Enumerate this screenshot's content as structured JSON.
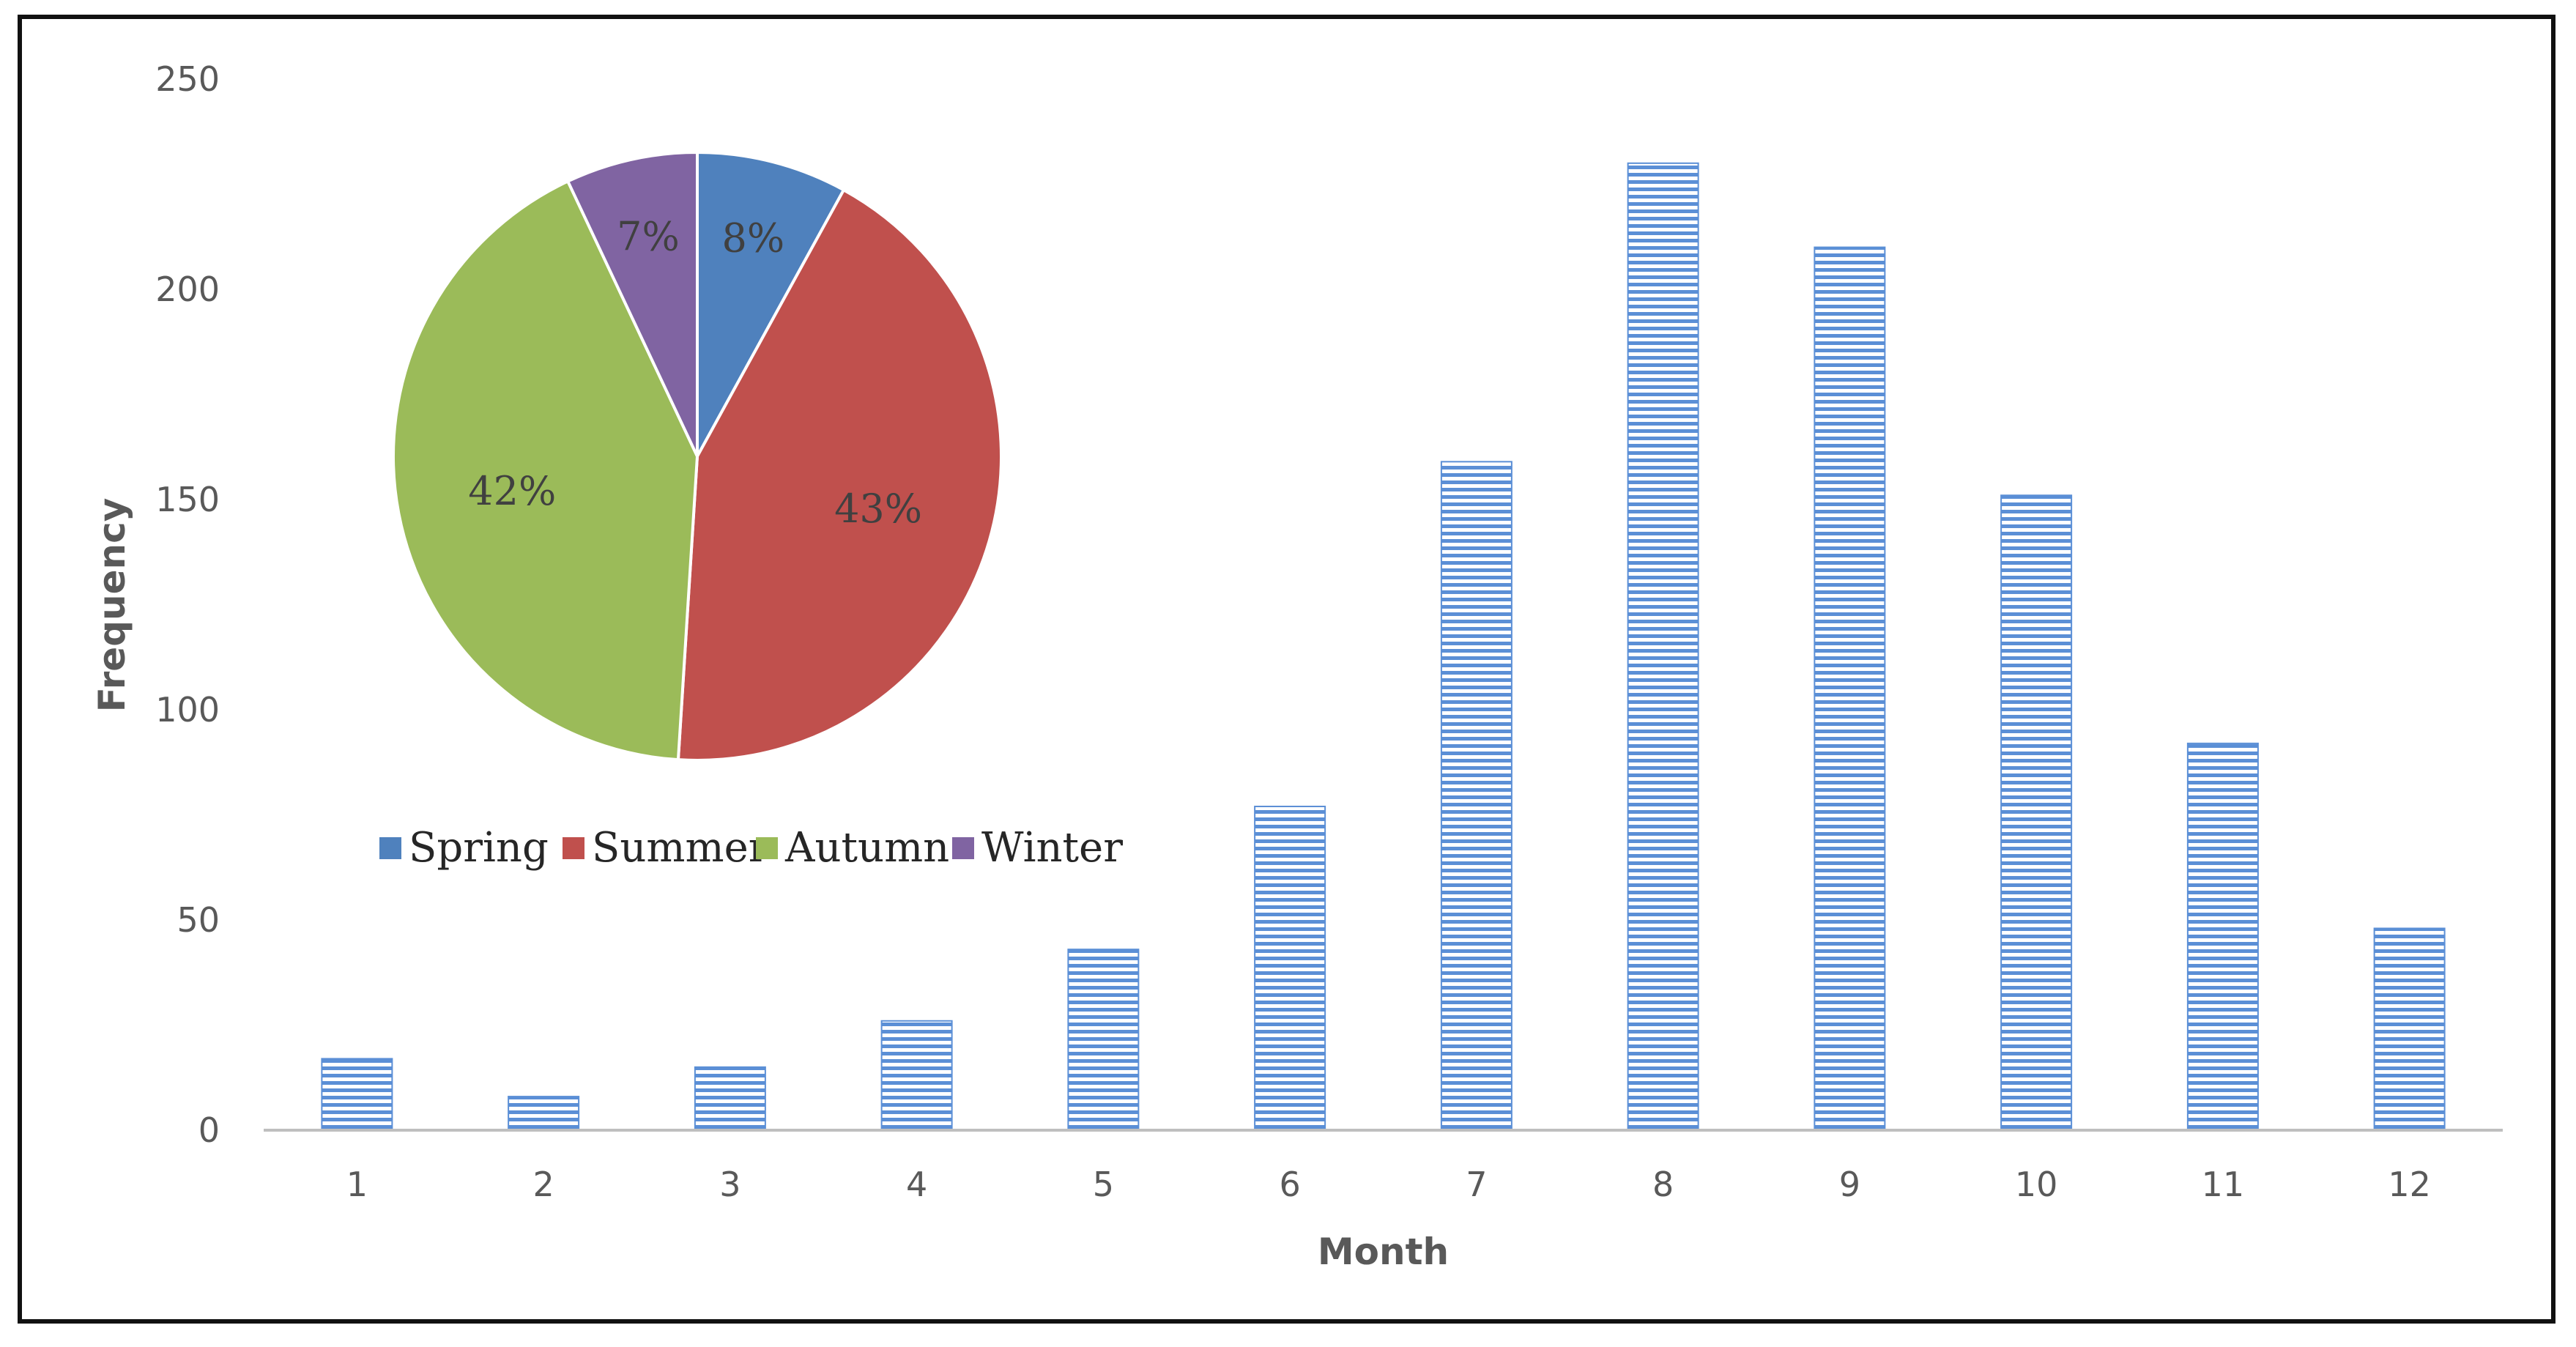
{
  "chart_data": [
    {
      "type": "bar",
      "xlabel": "Month",
      "ylabel": "Frequency",
      "ylim": [
        0,
        250
      ],
      "yticks": [
        0,
        50,
        100,
        150,
        200,
        250
      ],
      "categories": [
        "1",
        "2",
        "3",
        "4",
        "5",
        "6",
        "7",
        "8",
        "9",
        "10",
        "11",
        "12"
      ],
      "values": [
        17,
        8,
        15,
        26,
        43,
        77,
        159,
        230,
        210,
        151,
        92,
        48
      ],
      "bar_color": "#5b8fd6",
      "bar_fill": "horizontal-stripes",
      "grid": false
    },
    {
      "type": "pie",
      "slices": [
        {
          "label": "Spring",
          "value": 8,
          "display": "8%",
          "color": "#4f81bd"
        },
        {
          "label": "Summer",
          "value": 43,
          "display": "43%",
          "color": "#c0504d"
        },
        {
          "label": "Autumn",
          "value": 42,
          "display": "42%",
          "color": "#9bbb59"
        },
        {
          "label": "Winter",
          "value": 7,
          "display": "7%",
          "color": "#8064a2"
        }
      ],
      "start_angle": "12 o'clock, clockwise",
      "legend_position": "bottom"
    }
  ]
}
